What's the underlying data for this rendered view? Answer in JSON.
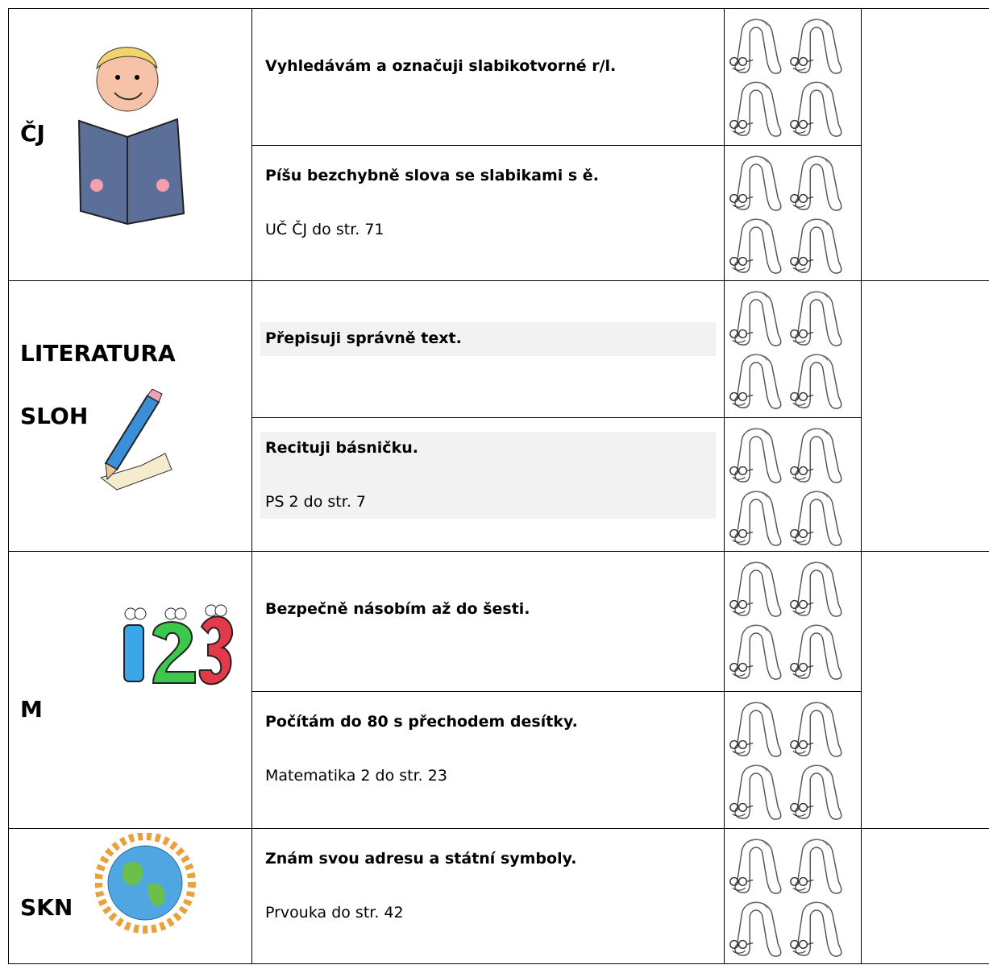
{
  "rows": [
    {
      "subject": [
        "ČJ"
      ],
      "items": [
        {
          "goal": "Vyhledávám a označuji slabikotvorné r/l."
        },
        {
          "goal": "Píšu bezchybně slova se slabikami s ě.",
          "note": "UČ ČJ do str. 71"
        }
      ]
    },
    {
      "subject": [
        "LITERATURA",
        "SLOH"
      ],
      "items": [
        {
          "goal": "Přepisuji správně text."
        },
        {
          "goal": "Recituji básničku.",
          "note": "PS 2 do str. 7"
        }
      ]
    },
    {
      "subject": [
        "M"
      ],
      "items": [
        {
          "goal": "Bezpečně násobím až do šesti."
        },
        {
          "goal": "Počítám do 80 s přechodem desítky.",
          "note": "Matematika 2 do str. 23"
        }
      ]
    },
    {
      "subject": [
        "SKN"
      ],
      "items": [
        {
          "goal": "Znám svou adresu a státní symboly.",
          "note": "Prvouka do str. 42"
        }
      ]
    }
  ]
}
